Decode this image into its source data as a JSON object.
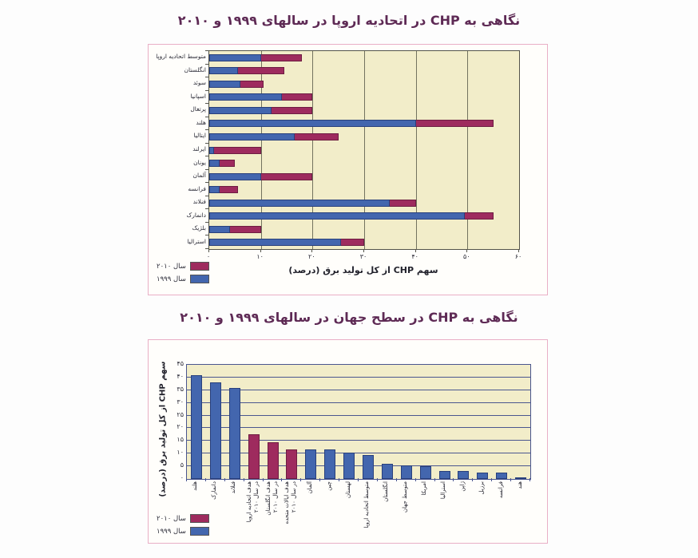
{
  "colors": {
    "bar_1999": "#4366ae",
    "bar_2010": "#9e2b5e",
    "plot_bg": "#f2edc9",
    "grid_top_chart": "#73735f",
    "grid_bottom_chart": "#4a568f",
    "box_border": "#e9afc6",
    "title": "#5e2a55"
  },
  "legend": {
    "label_2010": "سال ۲۰۱۰",
    "label_1999": "سال ۱۹۹۹"
  },
  "chart_data": [
    {
      "type": "bar",
      "orientation": "horizontal-stacked",
      "title": "نگاهی به CHP  در اتحادیه اروپا در سالهای ۱۹۹۹ و ۲۰۱۰",
      "xlabel": "سهم CHP از کل تولید برق (درصد)",
      "xlim": [
        0,
        60
      ],
      "grid": "vertical",
      "legend_position": "bottom-left",
      "xticks": [
        {
          "v": 0,
          "label": "۰"
        },
        {
          "v": 10,
          "label": "۱۰"
        },
        {
          "v": 20,
          "label": "۲۰"
        },
        {
          "v": 30,
          "label": "۳۰"
        },
        {
          "v": 40,
          "label": "۴۰"
        },
        {
          "v": 50,
          "label": "۵۰"
        },
        {
          "v": 60,
          "label": "۶۰"
        }
      ],
      "categories": [
        "متوسط اتحادیه اروپا",
        "انگلستان",
        "سوئد",
        "اسپانیا",
        "پرتغال",
        "هلند",
        "ایتالیا",
        "ایرلند",
        "یونان",
        "آلمان",
        "فرانسه",
        "فنلاند",
        "دانمارک",
        "بلژیک",
        "استرالیا"
      ],
      "series": [
        {
          "name": "سال ۱۹۹۹",
          "values": [
            10,
            5.5,
            6,
            14,
            12,
            40,
            16.5,
            1,
            2,
            10,
            2,
            35,
            49.5,
            4,
            25.5
          ]
        },
        {
          "name": "سال ۲۰۱۰",
          "values": [
            18,
            14.5,
            10.5,
            20,
            20,
            55,
            25,
            10,
            5,
            20,
            5.5,
            40,
            55,
            10,
            30
          ]
        }
      ],
      "series_note": "values of سال ۲۰۱۰ are the bar end totals; maroon segment spans from the 1999 value to the 2010 value"
    },
    {
      "type": "bar",
      "orientation": "vertical",
      "title": "نگاهی به CHP  در سطح جهان در سالهای ۱۹۹۹ و ۲۰۱۰",
      "ylabel": "سهم CHP از کل تولید برق (درصد)",
      "ylim": [
        0,
        45
      ],
      "grid": "horizontal",
      "legend_position": "bottom-left",
      "yticks": [
        {
          "v": 0,
          "label": "۰"
        },
        {
          "v": 5,
          "label": "۵"
        },
        {
          "v": 10,
          "label": "۱۰"
        },
        {
          "v": 15,
          "label": "۱۵"
        },
        {
          "v": 20,
          "label": "۲۰"
        },
        {
          "v": 25,
          "label": "۲۵"
        },
        {
          "v": 30,
          "label": "۳۰"
        },
        {
          "v": 35,
          "label": "۳۵"
        },
        {
          "v": 40,
          "label": "۴۰"
        },
        {
          "v": 45,
          "label": "۴۵"
        }
      ],
      "categories": [
        "هلند",
        "دانمارک",
        "فنلاند",
        "هدف اتحادیه اروپا\nدر سال ۲۰۱۰",
        "هدف انگلستان\nدر سال ۲۰۱۰",
        "هدف ایالات متحده\nدر سال ۲۰۱۰",
        "آلمان",
        "چین",
        "لهستان",
        "متوسط اتحادیه اروپا",
        "انگلستان",
        "متوسط جهان",
        "امریکا",
        "استرالیا",
        "ژاپن",
        "برزیل",
        "فرانسه",
        "هند"
      ],
      "values": [
        41,
        38,
        36,
        17.5,
        14.5,
        11.5,
        11.5,
        11.5,
        10.5,
        9.5,
        6,
        5.5,
        5,
        3,
        3,
        2.5,
        2.5,
        0.5
      ],
      "bar_series_key": [
        "1999",
        "1999",
        "1999",
        "2010",
        "2010",
        "2010",
        "1999",
        "1999",
        "1999",
        "1999",
        "1999",
        "1999",
        "1999",
        "1999",
        "1999",
        "1999",
        "1999",
        "1999"
      ]
    }
  ]
}
